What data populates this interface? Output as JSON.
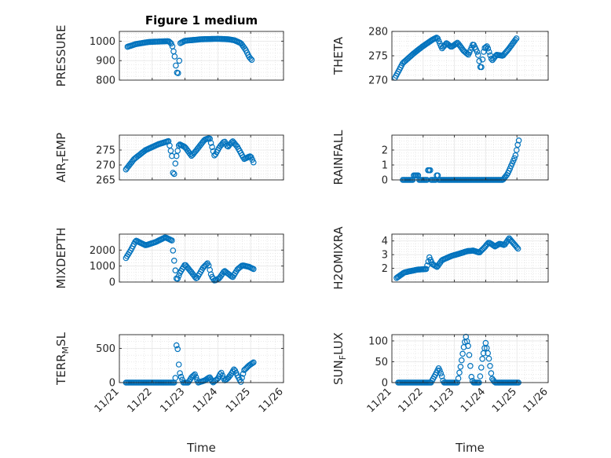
{
  "figure_title": "Figure 1 medium",
  "colors": {
    "marker": "#0072BD",
    "axis": "#262626",
    "grid": "#dcdcdc"
  },
  "chart_data": [
    {
      "type": "scatter",
      "id": "pressure",
      "title": "Figure 1 medium",
      "ylabel": "PRESSURE",
      "ylim": [
        800,
        1050
      ],
      "yticks": [
        800,
        900,
        1000
      ],
      "xlim": [
        0,
        5
      ],
      "xticks": [
        "11/21",
        "11/22",
        "11/23",
        "11/24",
        "11/25",
        "11/26"
      ],
      "xlabel": "",
      "grid": true,
      "x": [],
      "y": []
    },
    {
      "type": "scatter",
      "id": "theta",
      "title": "",
      "ylabel": "THETA",
      "ylim": [
        270,
        280
      ],
      "yticks": [
        270,
        275,
        280
      ],
      "xlim": [
        0,
        5
      ],
      "xticks": [
        "11/21",
        "11/22",
        "11/23",
        "11/24",
        "11/25",
        "11/26"
      ],
      "xlabel": "",
      "grid": true,
      "x": [],
      "y": []
    },
    {
      "type": "scatter",
      "id": "air_temp",
      "title": "",
      "ylabel": "AIR",
      "ylabel_sub": "T",
      "ylabel_rest": "EMP",
      "ylim": [
        265,
        280
      ],
      "yticks": [
        265,
        270,
        275
      ],
      "xlim": [
        0,
        5
      ],
      "xticks": [
        "11/21",
        "11/22",
        "11/23",
        "11/24",
        "11/25",
        "11/26"
      ],
      "xlabel": "",
      "grid": true,
      "x": [],
      "y": []
    },
    {
      "type": "scatter",
      "id": "rainfall",
      "title": "",
      "ylabel": "RAINFALL",
      "ylim": [
        0,
        3
      ],
      "yticks": [
        0,
        1,
        2
      ],
      "xlim": [
        0,
        5
      ],
      "xticks": [
        "11/21",
        "11/22",
        "11/23",
        "11/24",
        "11/25",
        "11/26"
      ],
      "xlabel": "",
      "grid": true,
      "x": [],
      "y": []
    },
    {
      "type": "scatter",
      "id": "mixdepth",
      "title": "",
      "ylabel": "MIXDEPTH",
      "ylim": [
        0,
        3000
      ],
      "yticks": [
        0,
        1000,
        2000
      ],
      "xlim": [
        0,
        5
      ],
      "xticks": [
        "11/21",
        "11/22",
        "11/23",
        "11/24",
        "11/25",
        "11/26"
      ],
      "xlabel": "",
      "grid": true,
      "x": [],
      "y": []
    },
    {
      "type": "scatter",
      "id": "h2omixra",
      "title": "",
      "ylabel": "H2OMIXRA",
      "ylim": [
        1,
        4.5
      ],
      "yticks": [
        2,
        3,
        4
      ],
      "xlim": [
        0,
        5
      ],
      "xticks": [
        "11/21",
        "11/22",
        "11/23",
        "11/24",
        "11/25",
        "11/26"
      ],
      "xlabel": "",
      "grid": true,
      "x": [],
      "y": []
    },
    {
      "type": "scatter",
      "id": "terr_msl",
      "title": "",
      "ylabel": "TERR",
      "ylabel_sub": "M",
      "ylabel_rest": "SL",
      "ylim": [
        0,
        700
      ],
      "yticks": [
        0,
        500
      ],
      "xlim": [
        0,
        5
      ],
      "xticks": [
        "11/21",
        "11/22",
        "11/23",
        "11/24",
        "11/25",
        "11/26"
      ],
      "xlabel": "Time",
      "grid": true,
      "x": [],
      "y": []
    },
    {
      "type": "scatter",
      "id": "sun_flux",
      "title": "",
      "ylabel": "SUN",
      "ylabel_sub": "F",
      "ylabel_rest": "LUX",
      "ylim": [
        0,
        115
      ],
      "yticks": [
        0,
        50,
        100
      ],
      "xlim": [
        0,
        5
      ],
      "xticks": [
        "11/21",
        "11/22",
        "11/23",
        "11/24",
        "11/25",
        "11/26"
      ],
      "xlabel": "Time",
      "grid": true,
      "x": [],
      "y": []
    }
  ]
}
